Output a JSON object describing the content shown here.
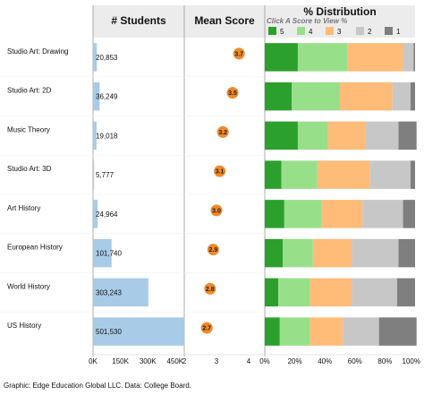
{
  "chart_data": {
    "type": "table",
    "headers": {
      "students": "# Students",
      "mean": "Mean Score",
      "dist": "% Distribution",
      "dist_sub": "Click A Score to View %"
    },
    "categories": [
      "Studio Art: Drawing",
      "Studio Art: 2D",
      "Music Theory",
      "Studio Art: 3D",
      "Art History",
      "European History",
      "World History",
      "US History"
    ],
    "students": {
      "values": [
        20853,
        36249,
        19018,
        5777,
        24964,
        101740,
        303243,
        501530
      ],
      "labels": [
        "20,853",
        "36,249",
        "19,018",
        "5,777",
        "24,964",
        "101,740",
        "303,243",
        "501,530"
      ],
      "xlim": [
        0,
        500000
      ],
      "ticks": [
        0,
        150000,
        300000,
        450000
      ],
      "tick_labels": [
        "0K",
        "150K",
        "300K",
        "450K"
      ],
      "color": "#a8cbe8"
    },
    "mean": {
      "values": [
        3.7,
        3.5,
        3.2,
        3.1,
        3.0,
        2.9,
        2.8,
        2.7
      ],
      "labels": [
        "3.7",
        "3.5",
        "3.2",
        "3.1",
        "3.0",
        "2.9",
        "2.8",
        "2.7"
      ],
      "xlim": [
        2,
        4.5
      ],
      "ticks": [
        2,
        3,
        4
      ],
      "tick_labels": [
        "2",
        "3",
        "4"
      ],
      "color": "#ef8a2a"
    },
    "distribution": {
      "score_names": [
        "5",
        "4",
        "3",
        "2",
        "1"
      ],
      "colors": [
        "#2ca02c",
        "#98df8a",
        "#ffbb78",
        "#c7c7c7",
        "#7f7f7f"
      ],
      "values": [
        [
          22,
          33,
          37,
          7,
          1
        ],
        [
          18,
          32,
          35,
          12,
          3
        ],
        [
          22,
          20,
          25,
          22,
          12
        ],
        [
          11,
          24,
          35,
          27,
          3
        ],
        [
          13,
          25,
          27,
          27,
          8
        ],
        [
          12,
          20,
          26,
          31,
          11
        ],
        [
          9,
          21,
          28,
          30,
          12
        ],
        [
          10,
          20,
          22,
          24,
          25
        ]
      ],
      "xlim": [
        0,
        100
      ],
      "ticks": [
        0,
        20,
        40,
        60,
        80,
        100
      ],
      "tick_labels": [
        "0%",
        "20%",
        "40%",
        "60%",
        "80%",
        "100%"
      ]
    }
  },
  "footer": "Graphic: Edge Education Global LLC. Data: College Board."
}
